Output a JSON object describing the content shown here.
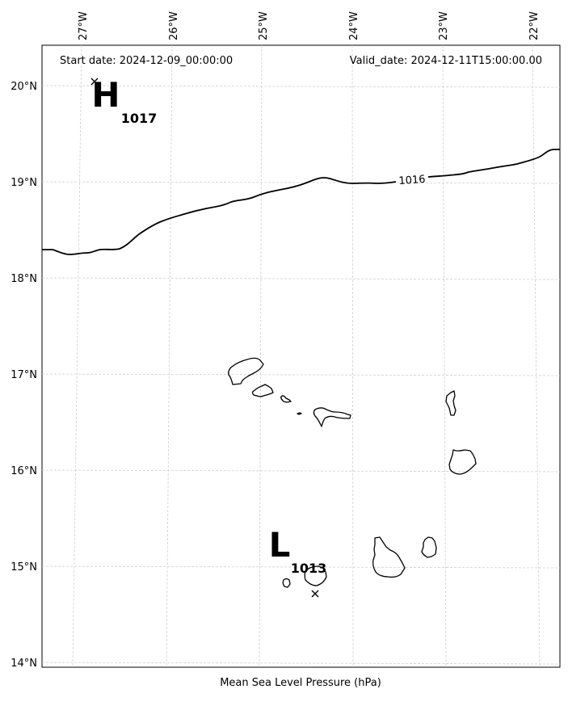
{
  "header": {
    "start_date": "Start date: 2024-12-09_00:00:00",
    "valid_date": "Valid_date: 2024-12-11T15:00:00.00"
  },
  "footer": {
    "label": "Mean Sea Level Pressure (hPa)"
  },
  "axes": {
    "lon_ticks": [
      "27°W",
      "26°W",
      "25°W",
      "24°W",
      "23°W",
      "22°W"
    ],
    "lat_ticks": [
      "20°N",
      "19°N",
      "18°N",
      "17°N",
      "16°N",
      "15°N",
      "14°N"
    ],
    "lon_range": [
      -27.35,
      -21.75
    ],
    "lat_range": [
      13.95,
      20.45
    ]
  },
  "isobars": [
    {
      "value": "1016",
      "label": "1016"
    }
  ],
  "pressure_centers": [
    {
      "type": "high",
      "letter": "H",
      "value": "1017",
      "lon": -26.85,
      "lat": 20.05
    },
    {
      "type": "low",
      "letter": "L",
      "value": "1013",
      "lon": -24.4,
      "lat": 14.7
    }
  ],
  "colors": {
    "land_outline": "#000000",
    "isobar": "#000000",
    "grid": "#cfcfcf"
  }
}
